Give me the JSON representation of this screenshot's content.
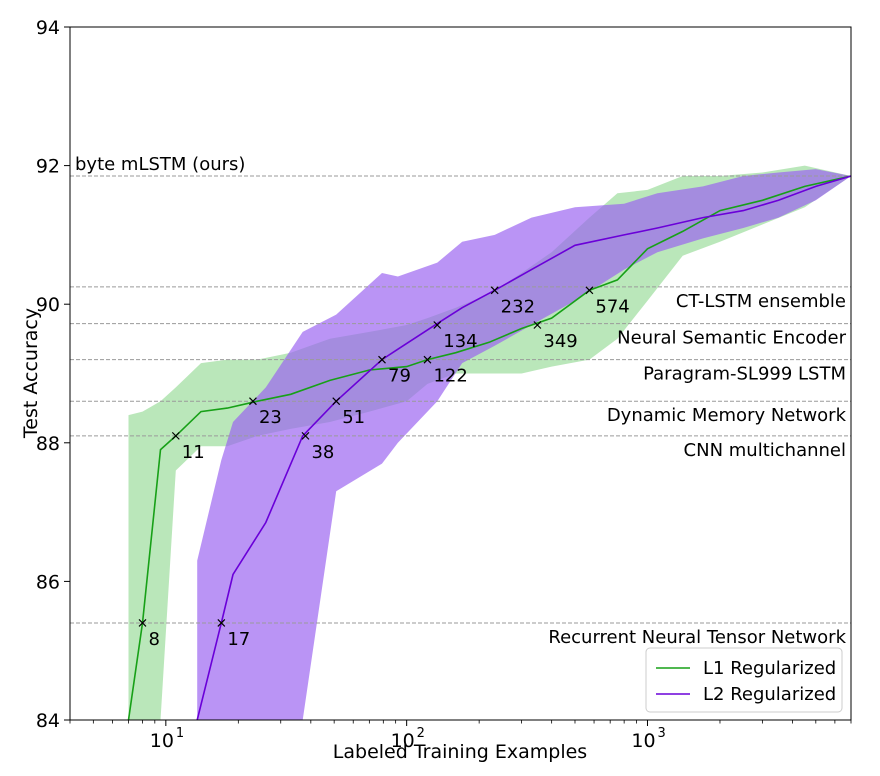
{
  "chart_data": {
    "type": "line",
    "xscale": "log",
    "xlim": [
      4,
      7000
    ],
    "ylim": [
      84,
      94
    ],
    "xlabel": "Labeled Training Examples",
    "ylabel": "Test Accuracy",
    "yticks": [
      84,
      86,
      88,
      90,
      92,
      94
    ],
    "xticks": [
      {
        "value": 10,
        "base": "10",
        "exp": "1"
      },
      {
        "value": 100,
        "base": "10",
        "exp": "2"
      },
      {
        "value": 1000,
        "base": "10",
        "exp": "3"
      }
    ],
    "grid": false,
    "legend_position": "lower-right",
    "colors": {
      "l1_line": "#17a017",
      "l1_band": "#8fd98f",
      "l2_line": "#6a00d8",
      "l2_band": "#9a62f0",
      "overlap_hint": "#4a7ea0",
      "reference_line": "#9a9a9a"
    },
    "reference_lines": [
      {
        "label": "byte mLSTM (ours)",
        "y": 91.85,
        "label_side": "left"
      },
      {
        "label": "CT-LSTM ensemble",
        "y": 90.25,
        "label_side": "right"
      },
      {
        "label": "Neural Semantic Encoder",
        "y": 89.72,
        "label_side": "right"
      },
      {
        "label": "Paragram-SL999 LSTM",
        "y": 89.2,
        "label_side": "right"
      },
      {
        "label": "Dynamic Memory Network",
        "y": 88.6,
        "label_side": "right"
      },
      {
        "label": "CNN multichannel",
        "y": 88.1,
        "label_side": "right"
      },
      {
        "label": "Recurrent Neural Tensor Network",
        "y": 85.4,
        "label_side": "right"
      }
    ],
    "series": [
      {
        "name": "L1 Regularized",
        "color": "#17a017",
        "band_color": "#8fd98f",
        "x": [
          7,
          8,
          9.5,
          11,
          14,
          18,
          24,
          33,
          48,
          70,
          100,
          122,
          160,
          220,
          300,
          400,
          574,
          750,
          1000,
          1400,
          2000,
          3000,
          4500,
          7000
        ],
        "y": [
          84.0,
          85.4,
          87.9,
          88.1,
          88.45,
          88.5,
          88.6,
          88.7,
          88.9,
          89.05,
          89.1,
          89.2,
          89.3,
          89.45,
          89.65,
          89.8,
          90.2,
          90.35,
          90.8,
          91.05,
          91.35,
          91.5,
          91.7,
          91.85
        ],
        "upper": [
          88.4,
          88.45,
          88.6,
          88.8,
          89.15,
          89.2,
          89.2,
          89.3,
          89.5,
          89.6,
          89.7,
          89.8,
          89.95,
          90.15,
          90.45,
          90.75,
          91.25,
          91.6,
          91.65,
          91.85,
          91.85,
          91.9,
          92.0,
          91.85
        ],
        "lower": [
          84.0,
          84.0,
          84.0,
          87.6,
          87.95,
          87.95,
          88.1,
          88.2,
          88.3,
          88.45,
          88.6,
          88.85,
          89.0,
          89.0,
          89.0,
          89.1,
          89.2,
          89.5,
          90.05,
          90.7,
          90.9,
          91.15,
          91.4,
          91.85
        ],
        "markers": [
          {
            "x": 8,
            "y": 85.4,
            "label": "8"
          },
          {
            "x": 11,
            "y": 88.1,
            "label": "11"
          },
          {
            "x": 23,
            "y": 88.6,
            "label": "23"
          },
          {
            "x": 122,
            "y": 89.2,
            "label": "122"
          },
          {
            "x": 349,
            "y": 89.7,
            "label": "349"
          },
          {
            "x": 574,
            "y": 90.2,
            "label": "574"
          }
        ]
      },
      {
        "name": "L2 Regularized",
        "color": "#6a00d8",
        "band_color": "#9a62f0",
        "x": [
          13.5,
          17,
          19,
          26,
          37,
          51,
          79,
          92,
          134,
          170,
          232,
          330,
          500,
          800,
          1100,
          1700,
          2500,
          3500,
          5000,
          7000
        ],
        "y": [
          84.0,
          85.4,
          86.1,
          86.85,
          88.1,
          88.6,
          89.2,
          89.35,
          89.72,
          89.95,
          90.2,
          90.5,
          90.85,
          91.0,
          91.1,
          91.25,
          91.35,
          91.5,
          91.7,
          91.85
        ],
        "upper": [
          86.3,
          87.75,
          88.3,
          88.8,
          89.6,
          89.85,
          90.45,
          90.4,
          90.6,
          90.9,
          91.0,
          91.25,
          91.4,
          91.45,
          91.6,
          91.7,
          91.85,
          91.9,
          91.95,
          91.85
        ],
        "lower": [
          84.0,
          84.0,
          84.0,
          84.0,
          84.0,
          87.3,
          87.7,
          88.0,
          88.6,
          89.15,
          89.4,
          89.7,
          90.05,
          90.5,
          90.75,
          90.95,
          91.1,
          91.25,
          91.5,
          91.85
        ],
        "markers": [
          {
            "x": 17,
            "y": 85.4,
            "label": "17"
          },
          {
            "x": 38,
            "y": 88.1,
            "label": "38"
          },
          {
            "x": 51,
            "y": 88.6,
            "label": "51"
          },
          {
            "x": 79,
            "y": 89.2,
            "label": "79"
          },
          {
            "x": 134,
            "y": 89.7,
            "label": "134"
          },
          {
            "x": 232,
            "y": 90.2,
            "label": "232"
          }
        ]
      }
    ]
  }
}
